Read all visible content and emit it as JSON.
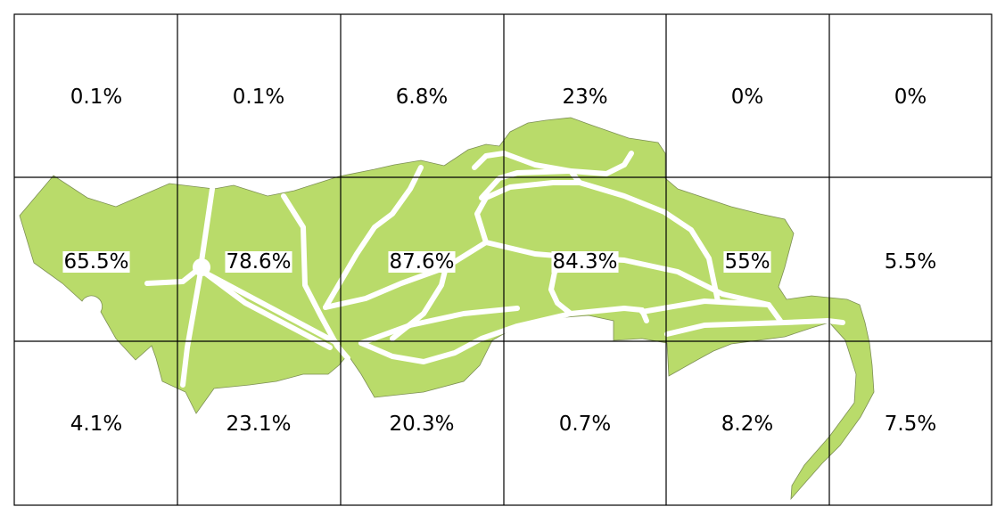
{
  "colors": {
    "land": "#b9db6a",
    "land_outline": "#7d8f55",
    "road": "#ffffff",
    "grid": "#000000",
    "label_background": "#ffffff"
  },
  "grid": {
    "rows": 3,
    "columns": 6,
    "cells": [
      {
        "row": 0,
        "col": 0,
        "label": "0.1%",
        "highlighted": false
      },
      {
        "row": 0,
        "col": 1,
        "label": "0.1%",
        "highlighted": false
      },
      {
        "row": 0,
        "col": 2,
        "label": "6.8%",
        "highlighted": false
      },
      {
        "row": 0,
        "col": 3,
        "label": "23%",
        "highlighted": false
      },
      {
        "row": 0,
        "col": 4,
        "label": "0%",
        "highlighted": false
      },
      {
        "row": 0,
        "col": 5,
        "label": "0%",
        "highlighted": false
      },
      {
        "row": 1,
        "col": 0,
        "label": "65.5%",
        "highlighted": true
      },
      {
        "row": 1,
        "col": 1,
        "label": "78.6%",
        "highlighted": true
      },
      {
        "row": 1,
        "col": 2,
        "label": "87.6%",
        "highlighted": true
      },
      {
        "row": 1,
        "col": 3,
        "label": "84.3%",
        "highlighted": true
      },
      {
        "row": 1,
        "col": 4,
        "label": "55%",
        "highlighted": true
      },
      {
        "row": 1,
        "col": 5,
        "label": "5.5%",
        "highlighted": false
      },
      {
        "row": 2,
        "col": 0,
        "label": "4.1%",
        "highlighted": false
      },
      {
        "row": 2,
        "col": 1,
        "label": "23.1%",
        "highlighted": false
      },
      {
        "row": 2,
        "col": 2,
        "label": "20.3%",
        "highlighted": false
      },
      {
        "row": 2,
        "col": 3,
        "label": "0.7%",
        "highlighted": false
      },
      {
        "row": 2,
        "col": 4,
        "label": "8.2%",
        "highlighted": false
      },
      {
        "row": 2,
        "col": 5,
        "label": "7.5%",
        "highlighted": false
      }
    ]
  }
}
